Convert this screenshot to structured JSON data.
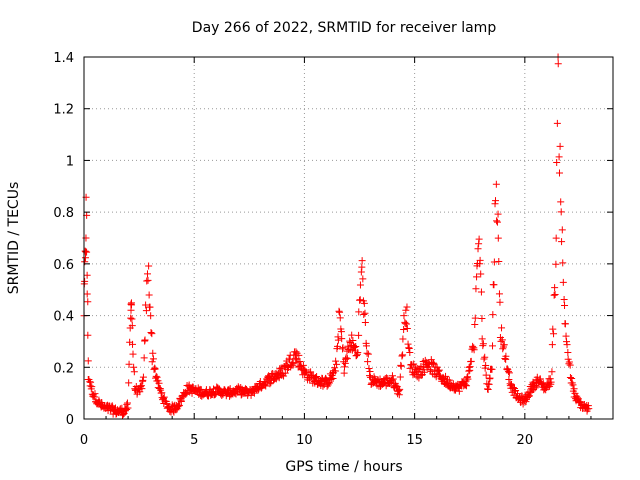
{
  "chart_data": {
    "type": "scatter",
    "title": "Day 266 of 2022, SRMTID for receiver lamp",
    "xlabel": "GPS time / hours",
    "ylabel": "SRMTID / TECUs",
    "xlim": [
      0,
      24
    ],
    "ylim": [
      0,
      1.4
    ],
    "grid": true,
    "marker": "+",
    "marker_color": "#ff0000",
    "x_ticks": [
      0,
      5,
      10,
      15,
      20
    ],
    "x_tick_labels": [
      "0",
      "5",
      "10",
      "15",
      "20"
    ],
    "y_ticks": [
      0,
      0.2,
      0.4,
      0.6,
      0.8,
      1.0,
      1.2,
      1.4
    ],
    "y_tick_labels": [
      "0",
      "0.2",
      "0.4",
      "0.6",
      "0.8",
      "1",
      "1.2",
      "1.4"
    ],
    "series": [
      {
        "name": "SRMTID",
        "baseline_points": [
          [
            0.0,
            0.42
          ],
          [
            0.05,
            0.6
          ],
          [
            0.1,
            0.8
          ],
          [
            0.15,
            0.5
          ],
          [
            0.2,
            0.16
          ],
          [
            0.4,
            0.1
          ],
          [
            0.6,
            0.07
          ],
          [
            0.8,
            0.05
          ],
          [
            1.0,
            0.04
          ],
          [
            1.2,
            0.04
          ],
          [
            1.4,
            0.03
          ],
          [
            1.6,
            0.03
          ],
          [
            1.8,
            0.03
          ],
          [
            2.0,
            0.05
          ],
          [
            2.1,
            0.35
          ],
          [
            2.15,
            0.5
          ],
          [
            2.2,
            0.3
          ],
          [
            2.3,
            0.12
          ],
          [
            2.5,
            0.1
          ],
          [
            2.7,
            0.15
          ],
          [
            2.8,
            0.4
          ],
          [
            2.9,
            0.58
          ],
          [
            3.0,
            0.45
          ],
          [
            3.1,
            0.25
          ],
          [
            3.3,
            0.15
          ],
          [
            3.5,
            0.1
          ],
          [
            3.7,
            0.06
          ],
          [
            3.9,
            0.04
          ],
          [
            4.1,
            0.04
          ],
          [
            4.3,
            0.06
          ],
          [
            4.5,
            0.09
          ],
          [
            4.7,
            0.12
          ],
          [
            5.0,
            0.11
          ],
          [
            5.5,
            0.1
          ],
          [
            6.0,
            0.11
          ],
          [
            6.5,
            0.1
          ],
          [
            7.0,
            0.11
          ],
          [
            7.5,
            0.1
          ],
          [
            8.0,
            0.13
          ],
          [
            8.5,
            0.16
          ],
          [
            9.0,
            0.18
          ],
          [
            9.3,
            0.22
          ],
          [
            9.6,
            0.25
          ],
          [
            10.0,
            0.18
          ],
          [
            10.5,
            0.15
          ],
          [
            11.0,
            0.14
          ],
          [
            11.4,
            0.18
          ],
          [
            11.6,
            0.4
          ],
          [
            11.8,
            0.2
          ],
          [
            12.1,
            0.3
          ],
          [
            12.4,
            0.25
          ],
          [
            12.6,
            0.6
          ],
          [
            12.8,
            0.3
          ],
          [
            13.0,
            0.15
          ],
          [
            13.5,
            0.14
          ],
          [
            14.0,
            0.15
          ],
          [
            14.3,
            0.1
          ],
          [
            14.6,
            0.45
          ],
          [
            14.8,
            0.2
          ],
          [
            15.2,
            0.18
          ],
          [
            15.6,
            0.22
          ],
          [
            16.0,
            0.18
          ],
          [
            16.5,
            0.14
          ],
          [
            17.0,
            0.12
          ],
          [
            17.4,
            0.15
          ],
          [
            17.7,
            0.3
          ],
          [
            17.9,
            0.72
          ],
          [
            18.1,
            0.3
          ],
          [
            18.3,
            0.12
          ],
          [
            18.5,
            0.2
          ],
          [
            18.7,
            0.95
          ],
          [
            18.9,
            0.35
          ],
          [
            19.1,
            0.25
          ],
          [
            19.4,
            0.12
          ],
          [
            19.7,
            0.08
          ],
          [
            20.0,
            0.07
          ],
          [
            20.3,
            0.12
          ],
          [
            20.6,
            0.15
          ],
          [
            20.9,
            0.12
          ],
          [
            21.2,
            0.15
          ],
          [
            21.4,
            0.6
          ],
          [
            21.5,
            1.3
          ],
          [
            21.6,
            1.0
          ],
          [
            21.75,
            0.5
          ],
          [
            21.9,
            0.3
          ],
          [
            22.1,
            0.15
          ],
          [
            22.3,
            0.08
          ],
          [
            22.6,
            0.05
          ],
          [
            22.9,
            0.04
          ]
        ]
      }
    ]
  }
}
